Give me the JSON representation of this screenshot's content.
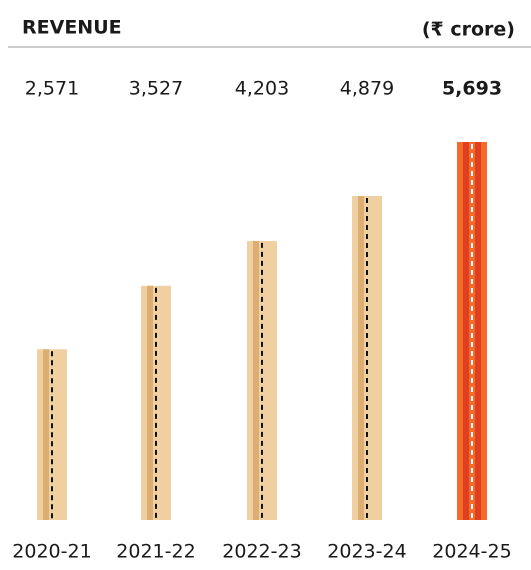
{
  "chart_data": {
    "type": "bar",
    "title": "REVENUE",
    "unit": "(₹ crore)",
    "categories": [
      "2020-21",
      "2021-22",
      "2022-23",
      "2023-24",
      "2024-25"
    ],
    "values": [
      2571,
      3527,
      4203,
      4879,
      5693
    ],
    "value_labels": [
      "2,571",
      "3,527",
      "4,203",
      "4,879",
      "5,693"
    ],
    "colors": [
      "#f0cfa0",
      "#f0cfa0",
      "#f0cfa0",
      "#f0cfa0",
      "#f26b2a"
    ],
    "bold": [
      false,
      false,
      false,
      false,
      true
    ]
  }
}
